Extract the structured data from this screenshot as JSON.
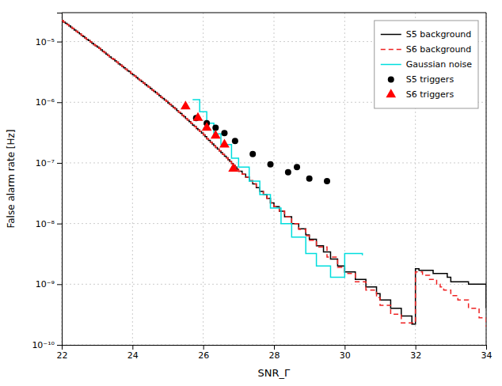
{
  "chart_data": {
    "type": "line",
    "xlabel": "SNR_Γ",
    "ylabel": "False alarm rate [Hz]",
    "xlim": [
      22,
      34
    ],
    "ylim": [
      1e-10,
      3e-05
    ],
    "xticks": [
      22,
      24,
      26,
      28,
      30,
      32,
      34
    ],
    "yticks": [
      {
        "value": 1e-10,
        "label": "10⁻¹⁰"
      },
      {
        "value": 1e-09,
        "label": "10⁻⁹"
      },
      {
        "value": 1e-08,
        "label": "10⁻⁸"
      },
      {
        "value": 1e-07,
        "label": "10⁻⁷"
      },
      {
        "value": 1e-06,
        "label": "10⁻⁶"
      },
      {
        "value": 1e-05,
        "label": "10⁻⁵"
      }
    ],
    "log": "y",
    "grid": true,
    "legend": "upper right",
    "series": [
      {
        "name": "S5 background",
        "type": "step",
        "color": "#000000",
        "line_style": "solid",
        "x": [
          22.0,
          22.05,
          22.1,
          22.15,
          22.2,
          22.25,
          22.3,
          22.35,
          22.4,
          22.45,
          22.5,
          22.55,
          22.6,
          22.65,
          22.7,
          22.75,
          22.8,
          22.85,
          22.9,
          22.95,
          23.0,
          23.05,
          23.1,
          23.15,
          23.2,
          23.25,
          23.3,
          23.35,
          23.4,
          23.45,
          23.5,
          23.55,
          23.6,
          23.65,
          23.7,
          23.75,
          23.8,
          23.85,
          23.9,
          23.95,
          24.0,
          24.05,
          24.1,
          24.15,
          24.2,
          24.25,
          24.3,
          24.35,
          24.4,
          24.45,
          24.5,
          24.55,
          24.6,
          24.65,
          24.7,
          24.75,
          24.8,
          24.85,
          24.9,
          24.95,
          25.0,
          25.05,
          25.1,
          25.15,
          25.2,
          25.25,
          25.3,
          25.35,
          25.4,
          25.45,
          25.5,
          25.55,
          25.6,
          25.65,
          25.7,
          25.75,
          25.8,
          25.85,
          25.9,
          25.95,
          26.0,
          26.05,
          26.1,
          26.15,
          26.2,
          26.25,
          26.3,
          26.35,
          26.4,
          26.45,
          26.5,
          26.55,
          26.6,
          26.65,
          26.7,
          26.75,
          26.8,
          26.85,
          26.9,
          26.95,
          27.0,
          27.1,
          27.2,
          27.3,
          27.4,
          27.5,
          27.6,
          27.7,
          27.8,
          27.9,
          28.0,
          28.15,
          28.3,
          28.5,
          28.7,
          28.9,
          29.0,
          29.2,
          29.4,
          29.6,
          29.8,
          30.0,
          30.3,
          30.6,
          30.9,
          31.0,
          31.3,
          31.6,
          31.9,
          32.0,
          32.1,
          32.5,
          32.9,
          33.0,
          33.5,
          34.0
        ],
        "values": [
          2.2e-05,
          2.1e-05,
          2e-05,
          1.9e-05,
          1.81e-05,
          1.72e-05,
          1.63e-05,
          1.55e-05,
          1.48e-05,
          1.41e-05,
          1.34e-05,
          1.27e-05,
          1.21e-05,
          1.15e-05,
          1.09e-05,
          1.04e-05,
          9.9e-06,
          9.4e-06,
          8.9e-06,
          8.5e-06,
          8.1e-06,
          7.7e-06,
          7.3e-06,
          6.9e-06,
          6.6e-06,
          6.2e-06,
          5.9e-06,
          5.6e-06,
          5.3e-06,
          5.1e-06,
          4.8e-06,
          4.6e-06,
          4.3e-06,
          4.1e-06,
          3.9e-06,
          3.7e-06,
          3.5e-06,
          3.3e-06,
          3.2e-06,
          3e-06,
          2.85e-06,
          2.7e-06,
          2.56e-06,
          2.43e-06,
          2.31e-06,
          2.19e-06,
          2.08e-06,
          1.97e-06,
          1.87e-06,
          1.77e-06,
          1.68e-06,
          1.59e-06,
          1.51e-06,
          1.43e-06,
          1.35e-06,
          1.28e-06,
          1.21e-06,
          1.15e-06,
          1.09e-06,
          1.03e-06,
          9.7e-07,
          9.2e-07,
          8.7e-07,
          8.2e-07,
          7.8e-07,
          7.3e-07,
          6.9e-07,
          6.5e-07,
          6.1e-07,
          5.8e-07,
          5.4e-07,
          5.1e-07,
          4.8e-07,
          4.5e-07,
          4.2e-07,
          4e-07,
          3.7e-07,
          3.5e-07,
          3.3e-07,
          3.1e-07,
          2.9e-07,
          2.7e-07,
          2.5e-07,
          2.35e-07,
          2.2e-07,
          2.05e-07,
          1.92e-07,
          1.8e-07,
          1.69e-07,
          1.58e-07,
          1.48e-07,
          1.38e-07,
          1.29e-07,
          1.21e-07,
          1.13e-07,
          1.05e-07,
          9.8e-08,
          9.1e-08,
          8.5e-08,
          7.9e-08,
          7.3e-08,
          6.5e-08,
          5.8e-08,
          5.1e-08,
          4.5e-08,
          3.9e-08,
          3.4e-08,
          3e-08,
          2.6e-08,
          2.2e-08,
          1.9e-08,
          1.6e-08,
          1.3e-08,
          1e-08,
          8.2e-09,
          6.5e-09,
          5.5e-09,
          4.3e-09,
          3.4e-09,
          2.6e-09,
          2e-09,
          1.6e-09,
          1.2e-09,
          9e-10,
          7e-10,
          5.5e-10,
          4e-10,
          3e-10,
          2.2e-10,
          1.8e-09,
          1.7e-09,
          1.5e-09,
          1.3e-09,
          1.1e-09,
          1e-09,
          4e-10
        ]
      },
      {
        "name": "S6 background",
        "type": "step",
        "color": "#ee2222",
        "line_style": "dashed",
        "x": [
          22.0,
          22.05,
          22.1,
          22.15,
          22.2,
          22.25,
          22.3,
          22.35,
          22.4,
          22.45,
          22.5,
          22.55,
          22.6,
          22.65,
          22.7,
          22.75,
          22.8,
          22.85,
          22.9,
          22.95,
          23.0,
          23.05,
          23.1,
          23.15,
          23.2,
          23.25,
          23.3,
          23.35,
          23.4,
          23.45,
          23.5,
          23.55,
          23.6,
          23.65,
          23.7,
          23.75,
          23.8,
          23.85,
          23.9,
          23.95,
          24.0,
          24.05,
          24.1,
          24.15,
          24.2,
          24.25,
          24.3,
          24.35,
          24.4,
          24.45,
          24.5,
          24.55,
          24.6,
          24.65,
          24.7,
          24.75,
          24.8,
          24.85,
          24.9,
          24.95,
          25.0,
          25.05,
          25.1,
          25.15,
          25.2,
          25.25,
          25.3,
          25.35,
          25.4,
          25.45,
          25.5,
          25.55,
          25.6,
          25.65,
          25.7,
          25.75,
          25.8,
          25.85,
          25.9,
          25.95,
          26.0,
          26.05,
          26.1,
          26.15,
          26.2,
          26.25,
          26.3,
          26.35,
          26.4,
          26.45,
          26.5,
          26.55,
          26.6,
          26.65,
          26.7,
          26.75,
          26.8,
          26.85,
          26.9,
          26.95,
          27.0,
          27.1,
          27.2,
          27.3,
          27.4,
          27.5,
          27.6,
          27.7,
          27.8,
          27.9,
          28.0,
          28.15,
          28.3,
          28.5,
          28.7,
          28.9,
          29.0,
          29.2,
          29.5,
          29.8,
          30.0,
          30.3,
          30.6,
          30.9,
          31.0,
          31.3,
          31.6,
          32.0,
          32.2,
          32.4,
          32.6,
          32.7,
          32.8,
          33.0,
          33.2,
          33.5,
          33.8,
          34.0
        ],
        "values": [
          2.2e-05,
          2.1e-05,
          2e-05,
          1.9e-05,
          1.81e-05,
          1.72e-05,
          1.63e-05,
          1.55e-05,
          1.48e-05,
          1.41e-05,
          1.34e-05,
          1.27e-05,
          1.21e-05,
          1.15e-05,
          1.09e-05,
          1.04e-05,
          9.9e-06,
          9.4e-06,
          8.9e-06,
          8.5e-06,
          8.1e-06,
          7.7e-06,
          7.3e-06,
          6.9e-06,
          6.6e-06,
          6.2e-06,
          5.9e-06,
          5.6e-06,
          5.3e-06,
          5.1e-06,
          4.8e-06,
          4.6e-06,
          4.3e-06,
          4.1e-06,
          3.9e-06,
          3.7e-06,
          3.5e-06,
          3.3e-06,
          3.2e-06,
          3e-06,
          2.85e-06,
          2.7e-06,
          2.56e-06,
          2.43e-06,
          2.31e-06,
          2.19e-06,
          2.08e-06,
          1.97e-06,
          1.87e-06,
          1.77e-06,
          1.68e-06,
          1.59e-06,
          1.51e-06,
          1.43e-06,
          1.35e-06,
          1.28e-06,
          1.21e-06,
          1.15e-06,
          1.09e-06,
          1.03e-06,
          9.7e-07,
          9.2e-07,
          8.7e-07,
          8.2e-07,
          7.8e-07,
          7.3e-07,
          6.9e-07,
          6.5e-07,
          6.1e-07,
          5.8e-07,
          5.4e-07,
          5.1e-07,
          4.8e-07,
          4.5e-07,
          4.2e-07,
          4e-07,
          3.7e-07,
          3.5e-07,
          3.3e-07,
          3.1e-07,
          2.9e-07,
          2.7e-07,
          2.5e-07,
          2.35e-07,
          2.2e-07,
          2.05e-07,
          1.92e-07,
          1.8e-07,
          1.69e-07,
          1.58e-07,
          1.48e-07,
          1.38e-07,
          1.29e-07,
          1.21e-07,
          1.13e-07,
          1.05e-07,
          9.8e-08,
          9.1e-08,
          8.5e-08,
          7.9e-08,
          7.3e-08,
          6.5e-08,
          5.8e-08,
          5.1e-08,
          4.5e-08,
          3.9e-08,
          3.4e-08,
          3e-08,
          2.6e-08,
          2.2e-08,
          1.9e-08,
          1.6e-08,
          1.3e-08,
          1e-08,
          8e-09,
          6.3e-09,
          5.3e-09,
          4.1e-09,
          2.8e-09,
          1.9e-09,
          1.5e-09,
          1.1e-09,
          8e-10,
          6e-10,
          4.5e-10,
          3.2e-10,
          2.3e-10,
          1.6e-09,
          1.4e-09,
          1.2e-09,
          1e-09,
          9e-10,
          8e-10,
          6.5e-10,
          5.5e-10,
          4e-10,
          2.8e-10,
          2e-10
        ]
      },
      {
        "name": "Gaussian noise",
        "type": "step",
        "color": "#00dddd",
        "line_style": "solid",
        "x": [
          25.7,
          25.9,
          26.1,
          26.3,
          26.5,
          26.8,
          27.0,
          27.3,
          27.6,
          27.9,
          28.2,
          28.5,
          28.9,
          29.2,
          29.6,
          30.0,
          30.5
        ],
        "values": [
          1.1e-06,
          7e-07,
          4.5e-07,
          3e-07,
          2e-07,
          1.2e-07,
          8.5e-08,
          5e-08,
          3e-08,
          1.8e-08,
          1e-08,
          6e-09,
          3.2e-09,
          2e-09,
          1.3e-09,
          3.2e-09,
          3e-09
        ]
      },
      {
        "name": "S5 triggers",
        "type": "scatter",
        "color": "#000000",
        "marker": "circle",
        "x": [
          25.8,
          26.1,
          26.35,
          26.6,
          26.9,
          27.4,
          27.9,
          28.4,
          28.65,
          29.0,
          29.5
        ],
        "values": [
          5.5e-07,
          4.5e-07,
          3.8e-07,
          3.1e-07,
          2.3e-07,
          1.4e-07,
          9.5e-08,
          7e-08,
          8.5e-08,
          5.5e-08,
          5e-08
        ]
      },
      {
        "name": "S6 triggers",
        "type": "scatter",
        "color": "#ff0000",
        "marker": "triangle",
        "x": [
          25.5,
          25.85,
          26.1,
          26.35,
          26.6,
          26.85
        ],
        "values": [
          8.5e-07,
          5.5e-07,
          3.8e-07,
          2.8e-07,
          2e-07,
          8e-08
        ]
      }
    ]
  }
}
